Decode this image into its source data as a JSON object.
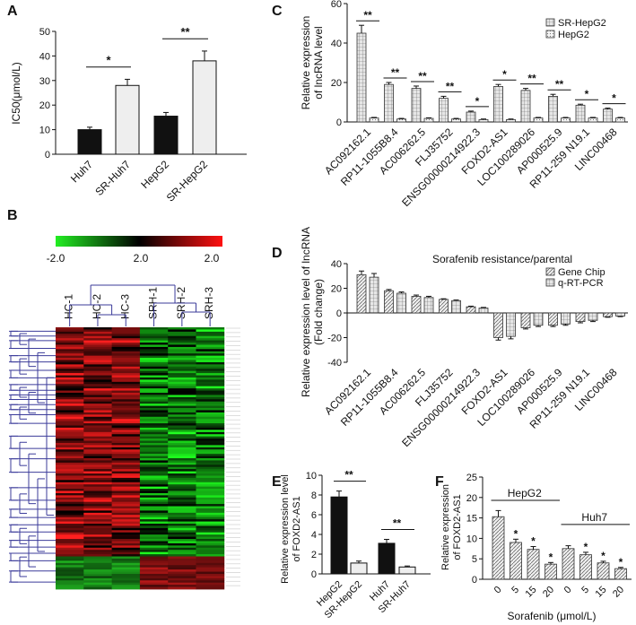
{
  "panels": {
    "a": "A",
    "b": "B",
    "c": "C",
    "d": "D",
    "e": "E",
    "f": "F"
  },
  "chart_data": [
    {
      "panel": "A",
      "type": "bar",
      "categories": [
        "Huh7",
        "SR-Huh7",
        "HepG2",
        "SR-HepG2"
      ],
      "values": [
        10,
        28,
        15.5,
        38
      ],
      "errors": [
        1,
        2.5,
        1.5,
        4
      ],
      "colors": [
        "#111111",
        "#eeeeee",
        "#111111",
        "#eeeeee"
      ],
      "ylabel": "IC50(μmol/L)",
      "ylim": [
        0,
        50
      ],
      "yticks": [
        0,
        10,
        20,
        30,
        40,
        50
      ],
      "significance": [
        {
          "from": 0,
          "to": 1,
          "label": "*"
        },
        {
          "from": 2,
          "to": 3,
          "label": "**"
        }
      ]
    },
    {
      "panel": "C",
      "type": "bar",
      "categories": [
        "AC092162.1",
        "RP11-1055B8.4",
        "AC006262.5",
        "FLJ35752",
        "ENSG00000214922.3",
        "FOXD2-AS1",
        "LOC100289026",
        "AP000525.9",
        "RP11-259 N19.1",
        "LINC00468"
      ],
      "series": [
        {
          "name": "SR-HepG2",
          "values": [
            45,
            19,
            17,
            12,
            5,
            18,
            16,
            13,
            8.5,
            6.5
          ],
          "errors": [
            4,
            1,
            1.2,
            1,
            0.5,
            1,
            1,
            1,
            0.5,
            0.5
          ]
        },
        {
          "name": "HepG2",
          "values": [
            2,
            1.5,
            1.8,
            1.5,
            1.2,
            1.2,
            2,
            2,
            2,
            2
          ],
          "errors": [
            0.3,
            0.3,
            0.3,
            0.3,
            0.3,
            0.3,
            0.3,
            0.3,
            0.3,
            0.3
          ]
        }
      ],
      "significance": [
        "**",
        "**",
        "**",
        "**",
        "*",
        "*",
        "**",
        "**",
        "*",
        "*"
      ],
      "ylabel_lines": [
        "Relative expression",
        "of lncRNA level"
      ],
      "ylim": [
        0,
        60
      ],
      "yticks": [
        0,
        20,
        40,
        60
      ]
    },
    {
      "panel": "D",
      "type": "bar",
      "title": "Sorafenib resistance/parental",
      "categories": [
        "AC092162.1",
        "RP11-1055B8.4",
        "AC006262.5",
        "FLJ35752",
        "ENSG00000214922.3",
        "FOXD2-AS1",
        "LOC100289026",
        "AP000525.9",
        "RP11-259 N19.1",
        "LINC00468"
      ],
      "series": [
        {
          "name": "Gene Chip",
          "values": [
            31,
            18,
            13.5,
            11,
            5,
            -20,
            -12,
            -10,
            -7,
            -3
          ],
          "errors": [
            3,
            1,
            1,
            0.5,
            0.5,
            2,
            1,
            1,
            1,
            0.5
          ]
        },
        {
          "name": "q-RT-PCR",
          "values": [
            29,
            16,
            12.5,
            10,
            4,
            -19,
            -10,
            -9,
            -6,
            -2.5
          ],
          "errors": [
            3,
            1,
            1,
            0.5,
            0.5,
            2,
            1,
            1,
            1,
            0.5
          ]
        }
      ],
      "ylabel_lines": [
        "Relative expression level of lncRNA",
        "(Fold change)"
      ],
      "ylim": [
        -40,
        40
      ],
      "yticks": [
        -40,
        -20,
        0,
        20,
        40
      ]
    },
    {
      "panel": "E",
      "type": "bar",
      "categories": [
        "HepG2",
        "SR-HepG2",
        "Huh7",
        "SR-Huh7"
      ],
      "values": [
        7.8,
        1.1,
        3.1,
        0.7
      ],
      "errors": [
        0.6,
        0.2,
        0.4,
        0.1
      ],
      "colors": [
        "#111111",
        "#eeeeee",
        "#111111",
        "#eeeeee"
      ],
      "ylabel_lines": [
        "Relative expression level",
        "of FOXD2-AS1"
      ],
      "ylim": [
        0,
        10
      ],
      "yticks": [
        0,
        2,
        4,
        6,
        8,
        10
      ],
      "significance": [
        {
          "from": 0,
          "to": 1,
          "label": "**"
        },
        {
          "from": 2,
          "to": 3,
          "label": "**"
        }
      ]
    },
    {
      "panel": "F",
      "type": "bar",
      "categories": [
        "0",
        "5",
        "15",
        "20",
        "0",
        "5",
        "15",
        "20"
      ],
      "groups": [
        "HepG2",
        "Huh7"
      ],
      "values": [
        15.3,
        9,
        7.3,
        3.7,
        7.5,
        6,
        4,
        2.6
      ],
      "errors": [
        1.5,
        0.8,
        0.7,
        0.4,
        0.7,
        0.6,
        0.4,
        0.3
      ],
      "stars": [
        "",
        "*",
        "*",
        "*",
        "",
        "*",
        "*",
        "*"
      ],
      "ylabel_lines": [
        "Relative expression",
        "of FOXD2-AS1"
      ],
      "xlabel": "Sorafenib (μmol/L)",
      "ylim": [
        0,
        25
      ],
      "yticks": [
        0,
        5,
        10,
        15,
        20,
        25
      ]
    }
  ],
  "heatmap": {
    "colorbar_ticks": [
      "-2.0",
      "2.0",
      "2.0"
    ],
    "columns": [
      "HC-1",
      "HC-2",
      "HC-3",
      "SRH-1",
      "SRH-2",
      "SRH-3"
    ]
  }
}
